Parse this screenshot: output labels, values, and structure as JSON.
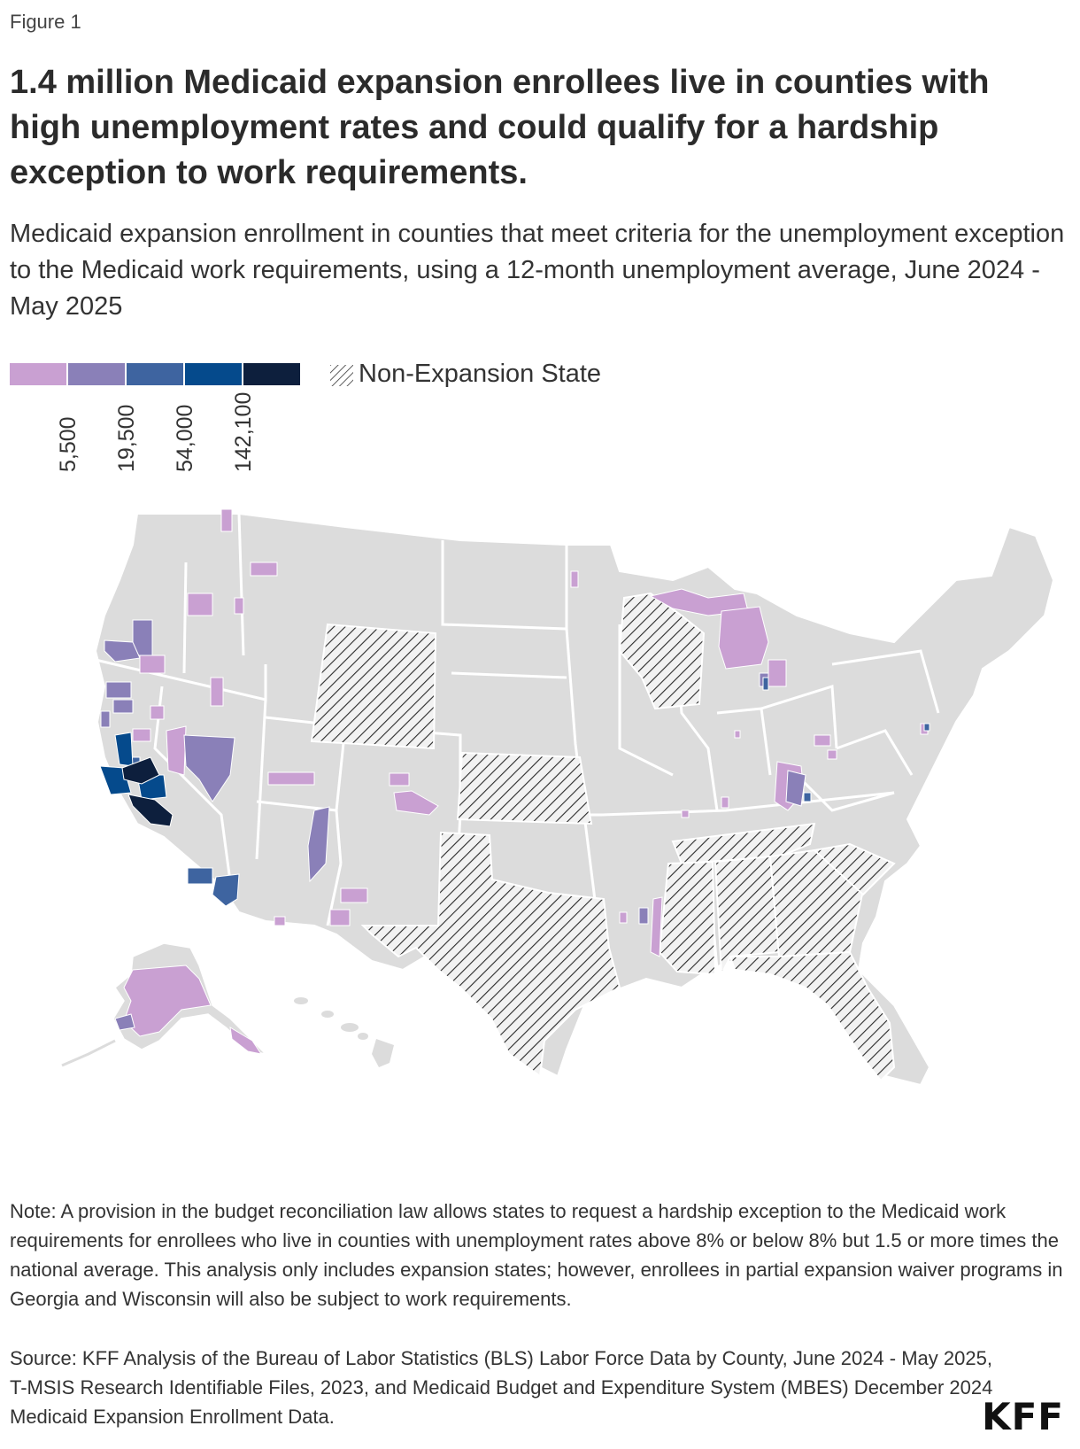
{
  "figure_label": "Figure 1",
  "title": "1.4 million Medicaid expansion enrollees live in counties with high unemployment rates and could qualify for a hardship exception to work requirements.",
  "subtitle": "Medicaid expansion enrollment in counties that meet criteria for the unemployment exception to the Medicaid work requirements, using a 12-month unemployment average, June 2024 - May 2025",
  "legend": {
    "bins": [
      {
        "color": "#c9a0d2"
      },
      {
        "color": "#8a80b8"
      },
      {
        "color": "#3e64a0"
      },
      {
        "color": "#054a8c"
      },
      {
        "color": "#0d1f3d"
      }
    ],
    "ticks": [
      "5,500",
      "19,500",
      "54,000",
      "142,100"
    ],
    "hatch_label": "Non-Expansion State"
  },
  "map": {
    "base_color": "#dcdcdc",
    "border_color": "#ffffff",
    "non_expansion_states": [
      "Wyoming",
      "Kansas",
      "Texas",
      "Wisconsin",
      "Tennessee",
      "Mississippi",
      "Alabama",
      "Georgia",
      "South Carolina",
      "Florida"
    ]
  },
  "note": "Note: A provision in the budget reconciliation law allows states to request a hardship exception to the Medicaid work requirements for enrollees who live in counties with unemployment rates above 8% or below 8% but 1.5 or more times the national average. This analysis only includes expansion states; however, enrollees in partial expansion waiver programs in Georgia and Wisconsin will also be subject to work requirements.",
  "source": "Source: KFF Analysis of the Bureau of Labor Statistics (BLS) Labor Force Data by County, June 2024 - May 2025, T-MSIS Research Identifiable Files, 2023, and Medicaid Budget and Expenditure System (MBES) December 2024 Medicaid Expansion Enrollment Data.",
  "logo": "KFF"
}
